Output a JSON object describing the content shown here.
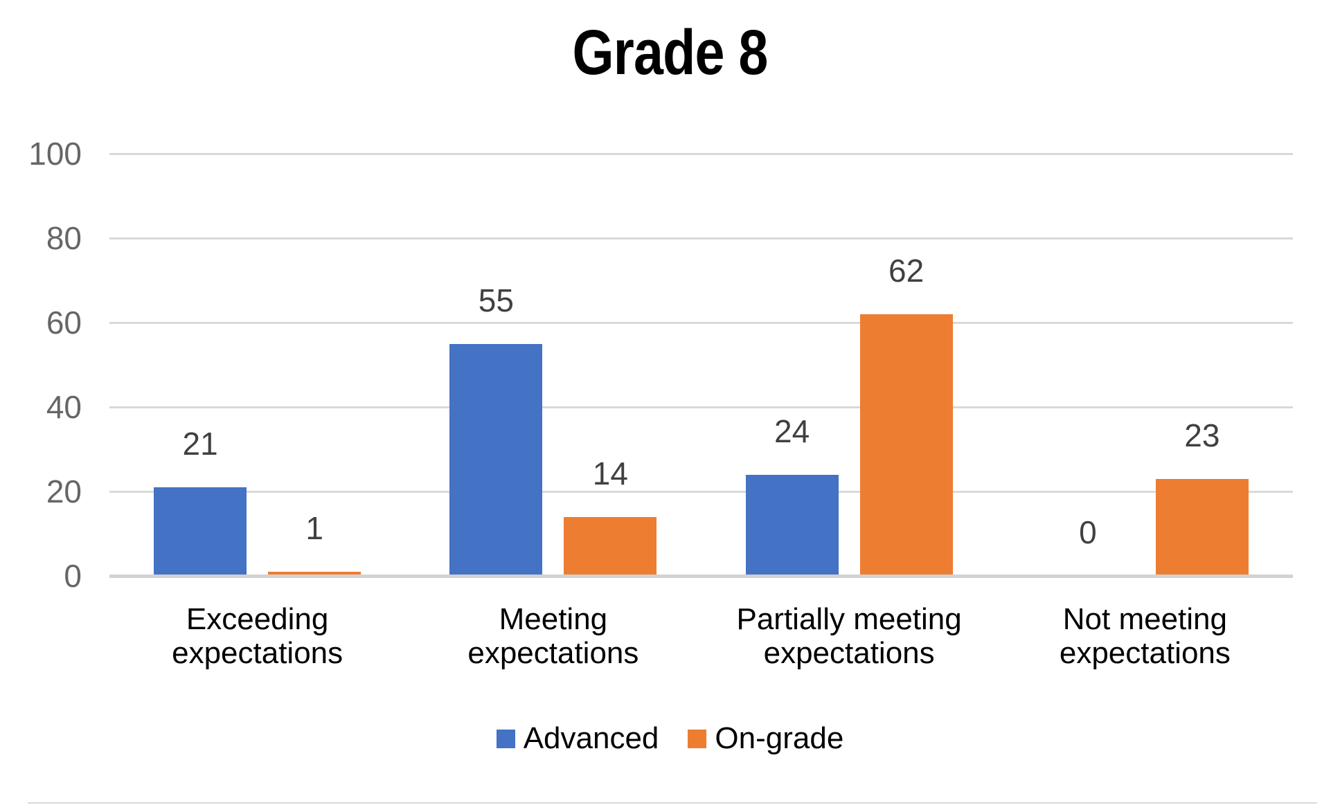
{
  "chart_data": {
    "type": "bar",
    "title": "Grade 8",
    "categories": [
      "Exceeding expectations",
      "Meeting expectations",
      "Partially meeting expectations",
      "Not meeting expectations"
    ],
    "category_label_lines": [
      "Exceeding\nexpectations",
      "Meeting\nexpectations",
      "Partially meeting\nexpectations",
      "Not meeting\nexpectations"
    ],
    "series": [
      {
        "name": "Advanced",
        "color": "#4472C4",
        "values": [
          21,
          55,
          24,
          0
        ]
      },
      {
        "name": "On-grade",
        "color": "#ED7D31",
        "values": [
          1,
          14,
          62,
          23
        ]
      }
    ],
    "xlabel": "",
    "ylabel": "",
    "ylim": [
      0,
      100
    ],
    "yticks": [
      0,
      20,
      40,
      60,
      80,
      100
    ],
    "grid": true,
    "data_labels": true,
    "legend_position": "bottom"
  },
  "colors": {
    "advanced": "#4472C4",
    "on_grade": "#ED7D31",
    "gridline": "#D9D9D9",
    "axis_line": "#D2D2D2",
    "ytick_label": "#666666",
    "data_label": "#404040",
    "text": "#000000",
    "background": "#FFFFFF"
  }
}
